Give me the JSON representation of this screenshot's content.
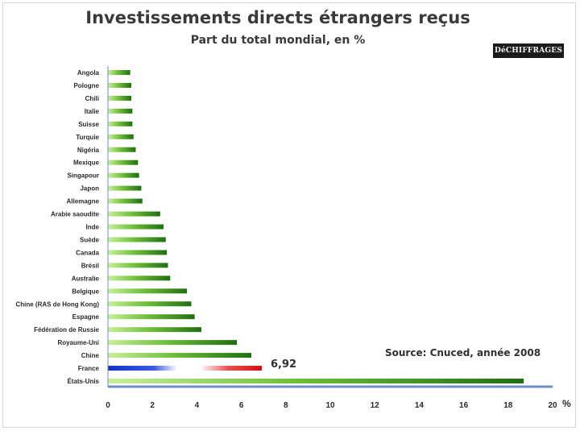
{
  "header": {
    "title": "Investissements directs étrangers reçus",
    "subtitle": "Part du total mondial, en %",
    "logo": "DéCHIFFRAGES"
  },
  "source": "Source: Cnuced, année 2008",
  "chart_data": {
    "type": "bar",
    "orientation": "horizontal",
    "title": "Investissements directs étrangers reçus",
    "subtitle": "Part du total mondial, en %",
    "xlabel": "%",
    "ylabel": "",
    "xlim": [
      0,
      20
    ],
    "xticks": [
      0,
      2,
      4,
      6,
      8,
      10,
      12,
      14,
      16,
      18,
      20
    ],
    "categories": [
      "Angola",
      "Pologne",
      "Chili",
      "Italie",
      "Suisse",
      "Turquie",
      "Nigéria",
      "Mexique",
      "Singapour",
      "Japon",
      "Allemagne",
      "Arabie saoudite",
      "Inde",
      "Suède",
      "Canada",
      "Brésil",
      "Australie",
      "Belgique",
      "Chine (RAS de Hong Kong)",
      "Espagne",
      "Fédération de Russie",
      "Royaume-Uni",
      "Chine",
      "France",
      "États-Unis"
    ],
    "values": [
      1.0,
      1.05,
      1.05,
      1.1,
      1.1,
      1.15,
      1.25,
      1.35,
      1.4,
      1.5,
      1.55,
      2.35,
      2.5,
      2.6,
      2.65,
      2.7,
      2.8,
      3.55,
      3.75,
      3.9,
      4.2,
      5.8,
      6.45,
      6.92,
      18.7
    ],
    "highlight": {
      "category": "France",
      "label": "6,92"
    },
    "grid": false,
    "legend": "none",
    "colors": {
      "bar_dark": "#1f6f12",
      "bar_light": "#b9e88a",
      "france_blue": "#1530c8",
      "france_red": "#e01b1b",
      "axis": "#6f8ec8"
    }
  }
}
